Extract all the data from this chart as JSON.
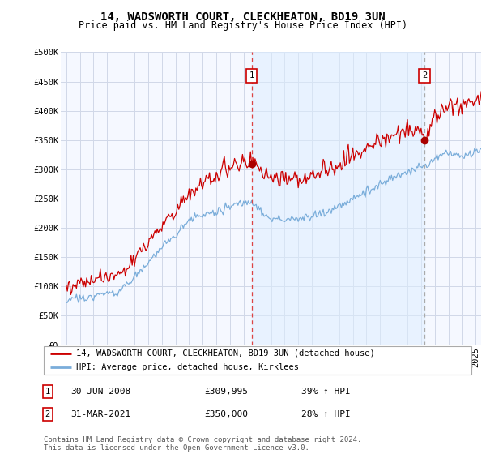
{
  "title": "14, WADSWORTH COURT, CLECKHEATON, BD19 3UN",
  "subtitle": "Price paid vs. HM Land Registry's House Price Index (HPI)",
  "ylim": [
    0,
    500000
  ],
  "yticks": [
    0,
    50000,
    100000,
    150000,
    200000,
    250000,
    300000,
    350000,
    400000,
    450000,
    500000
  ],
  "ytick_labels": [
    "£0",
    "£50K",
    "£100K",
    "£150K",
    "£200K",
    "£250K",
    "£300K",
    "£350K",
    "£400K",
    "£450K",
    "£500K"
  ],
  "background_color": "#ffffff",
  "plot_bg_color": "#f5f8ff",
  "grid_color": "#d0d8e8",
  "red_line_color": "#cc0000",
  "blue_line_color": "#7aadda",
  "vline1_color": "#dd4444",
  "vline1_style": "--",
  "vline2_color": "#aaaaaa",
  "vline2_style": "--",
  "shade_color": "#ddeeff",
  "shade_alpha": 0.5,
  "dot_color": "#aa0000",
  "marker1_x": 2008.58,
  "marker2_x": 2021.25,
  "marker1_y": 309995,
  "marker2_y": 350000,
  "xlim_left": 1994.6,
  "xlim_right": 2025.4,
  "legend_label1": "14, WADSWORTH COURT, CLECKHEATON, BD19 3UN (detached house)",
  "legend_label2": "HPI: Average price, detached house, Kirklees",
  "annotation1_num": "1",
  "annotation2_num": "2",
  "table_row1": [
    "1",
    "30-JUN-2008",
    "£309,995",
    "39% ↑ HPI"
  ],
  "table_row2": [
    "2",
    "31-MAR-2021",
    "£350,000",
    "28% ↑ HPI"
  ],
  "footer": "Contains HM Land Registry data © Crown copyright and database right 2024.\nThis data is licensed under the Open Government Licence v3.0.",
  "title_fontsize": 10,
  "subtitle_fontsize": 8.5,
  "tick_fontsize": 7.5,
  "legend_fontsize": 7.5,
  "table_fontsize": 8,
  "footer_fontsize": 6.5
}
